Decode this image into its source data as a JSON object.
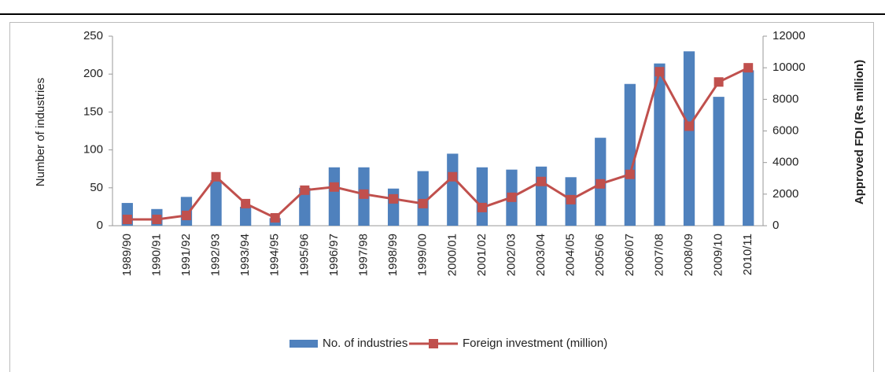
{
  "chart_data": {
    "type": "bar",
    "categories": [
      "1989/90",
      "1990/91",
      "1991/92",
      "1992/93",
      "1993/94",
      "1994/95",
      "1995/96",
      "1996/97",
      "1997/98",
      "1998/99",
      "1999/00",
      "2000/01",
      "2001/02",
      "2002/03",
      "2003/04",
      "2004/05",
      "2005/06",
      "2006/07",
      "2007/08",
      "2008/09",
      "2009/10",
      "2010/11"
    ],
    "series": [
      {
        "name": "No. of industries",
        "color": "#4f81bd",
        "type": "bar",
        "values": [
          30,
          22,
          38,
          60,
          25,
          10,
          50,
          77,
          77,
          49,
          72,
          95,
          77,
          74,
          78,
          64,
          116,
          187,
          214,
          230,
          170,
          205
        ]
      },
      {
        "name": "Foreign investment (million)",
        "color": "#c0504d",
        "type": "line",
        "axis": "y2",
        "values": [
          400,
          400,
          650,
          3100,
          1400,
          500,
          2250,
          2450,
          2000,
          1700,
          1400,
          3100,
          1150,
          1800,
          2800,
          1650,
          2650,
          3250,
          9750,
          6300,
          9100,
          10000
        ]
      }
    ],
    "ylabel": "Number of industries",
    "y2label": "Approved FDI (Rs million)",
    "ylim": [
      0,
      250
    ],
    "yticks": [
      0,
      50,
      100,
      150,
      200,
      250
    ],
    "y2lim": [
      0,
      12000
    ],
    "y2ticks": [
      0,
      2000,
      4000,
      6000,
      8000,
      10000,
      12000
    ],
    "grid": false,
    "legend": "bottom"
  }
}
